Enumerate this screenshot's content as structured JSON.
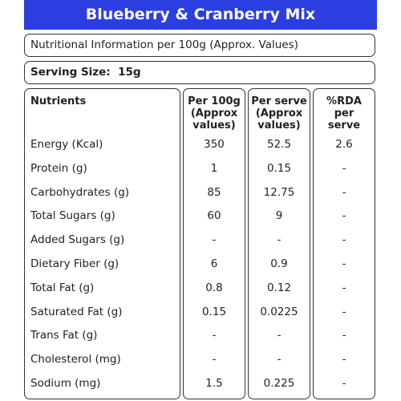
{
  "header": {
    "title": "Blueberry & Cranberry Mix"
  },
  "info": "Nutritional Information per 100g (Approx. Values)",
  "serving": {
    "label": "Serving Size:",
    "value": "15g"
  },
  "table": {
    "columns": [
      [
        "Nutrients"
      ],
      [
        "Per 100g",
        "(Approx",
        "values)"
      ],
      [
        "Per serve",
        "(Approx",
        "values)"
      ],
      [
        "%RDA",
        "per",
        "serve"
      ]
    ],
    "rows": [
      [
        "Energy (Kcal)",
        "350",
        "52.5",
        "2.6"
      ],
      [
        "Protein (g)",
        "1",
        "0.15",
        "-"
      ],
      [
        "Carbohydrates (g)",
        "85",
        "12.75",
        "-"
      ],
      [
        "Total Sugars (g)",
        "60",
        "9",
        "-"
      ],
      [
        "Added Sugars (g)",
        "-",
        "-",
        "-"
      ],
      [
        "Dietary Fiber (g)",
        "6",
        "0.9",
        "-"
      ],
      [
        "Total Fat (g)",
        "0.8",
        "0.12",
        "-"
      ],
      [
        "Saturated Fat (g)",
        "0.15",
        "0.0225",
        "-"
      ],
      [
        "Trans Fat (g)",
        "-",
        "-",
        "-"
      ],
      [
        "Cholesterol (mg)",
        "-",
        "-",
        "-"
      ],
      [
        "Sodium (mg)",
        "1.5",
        "0.225",
        "-"
      ]
    ]
  }
}
